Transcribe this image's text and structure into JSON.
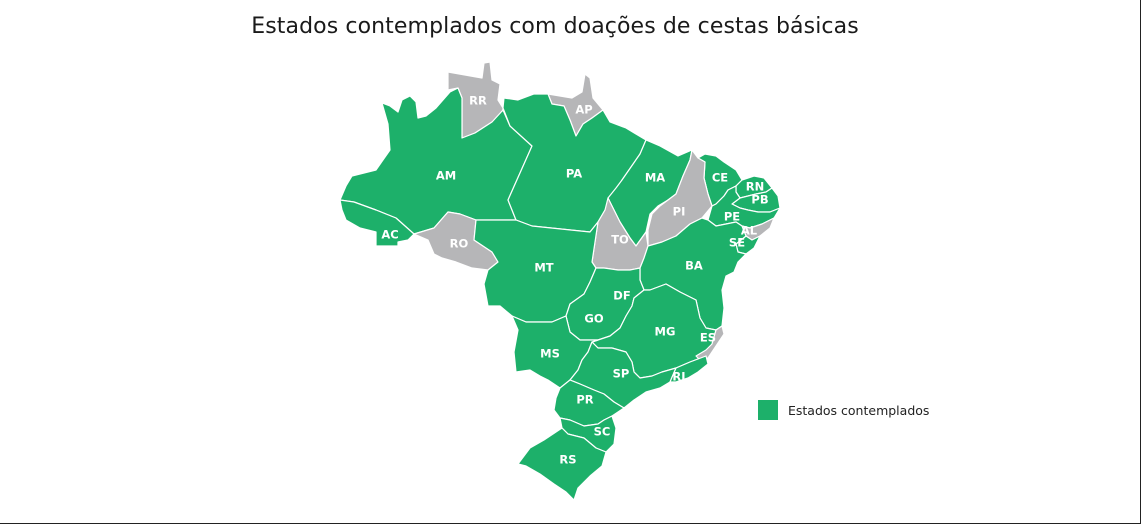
{
  "title": "Estados contemplados com doações de cestas básicas",
  "colors": {
    "contemplated": "#1db06a",
    "not_contemplated": "#b6b6b8"
  },
  "legend": {
    "label": "Estados contemplados"
  },
  "states": [
    {
      "code": "RR",
      "contemplated": false
    },
    {
      "code": "AP",
      "contemplated": false
    },
    {
      "code": "AM",
      "contemplated": true
    },
    {
      "code": "PA",
      "contemplated": true
    },
    {
      "code": "MA",
      "contemplated": true
    },
    {
      "code": "CE",
      "contemplated": true
    },
    {
      "code": "RN",
      "contemplated": true
    },
    {
      "code": "PB",
      "contemplated": true
    },
    {
      "code": "PE",
      "contemplated": true
    },
    {
      "code": "AL",
      "contemplated": false
    },
    {
      "code": "SE",
      "contemplated": true
    },
    {
      "code": "PI",
      "contemplated": false
    },
    {
      "code": "TO",
      "contemplated": false
    },
    {
      "code": "AC",
      "contemplated": true
    },
    {
      "code": "RO",
      "contemplated": false
    },
    {
      "code": "MT",
      "contemplated": true
    },
    {
      "code": "BA",
      "contemplated": true
    },
    {
      "code": "DF",
      "contemplated": true
    },
    {
      "code": "GO",
      "contemplated": true
    },
    {
      "code": "MG",
      "contemplated": true
    },
    {
      "code": "ES",
      "contemplated": false
    },
    {
      "code": "MS",
      "contemplated": true
    },
    {
      "code": "SP",
      "contemplated": true
    },
    {
      "code": "RJ",
      "contemplated": true
    },
    {
      "code": "PR",
      "contemplated": true
    },
    {
      "code": "SC",
      "contemplated": true
    },
    {
      "code": "RS",
      "contemplated": true
    }
  ]
}
